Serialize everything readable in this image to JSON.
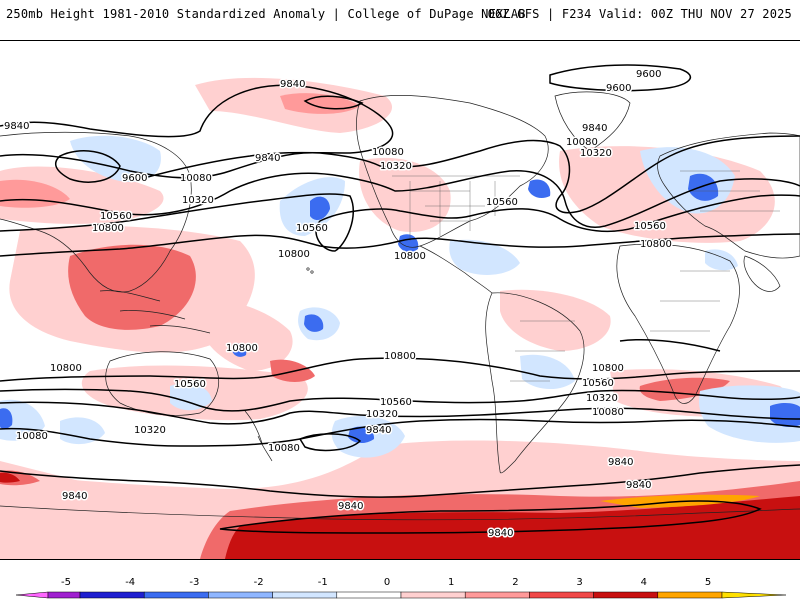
{
  "header": {
    "title_left": "250mb Height 1981-2010 Standardized Anomaly | College of DuPage NEXLAB",
    "title_right": "06Z GFS | F234 Valid: 00Z THU NOV 27 2025"
  },
  "map": {
    "field": "250mb geopotential height (contours) and standardized anomaly (shading)",
    "contour_labels": [
      "9600",
      "9840",
      "10080",
      "10320",
      "10560",
      "10800"
    ]
  },
  "legend": {
    "ticks": [
      "-5",
      "-4",
      "-3",
      "-2",
      "-1",
      "0",
      "1",
      "2",
      "3",
      "4",
      "5"
    ],
    "colors": [
      "#ff66ff",
      "#a020d0",
      "#1f1fd0",
      "#3b6cf0",
      "#8fb6ff",
      "#d2e6ff",
      "#ffffff",
      "#ffd0d0",
      "#ff9a9a",
      "#f04848",
      "#c81010",
      "#ffa500",
      "#ffe000"
    ]
  }
}
